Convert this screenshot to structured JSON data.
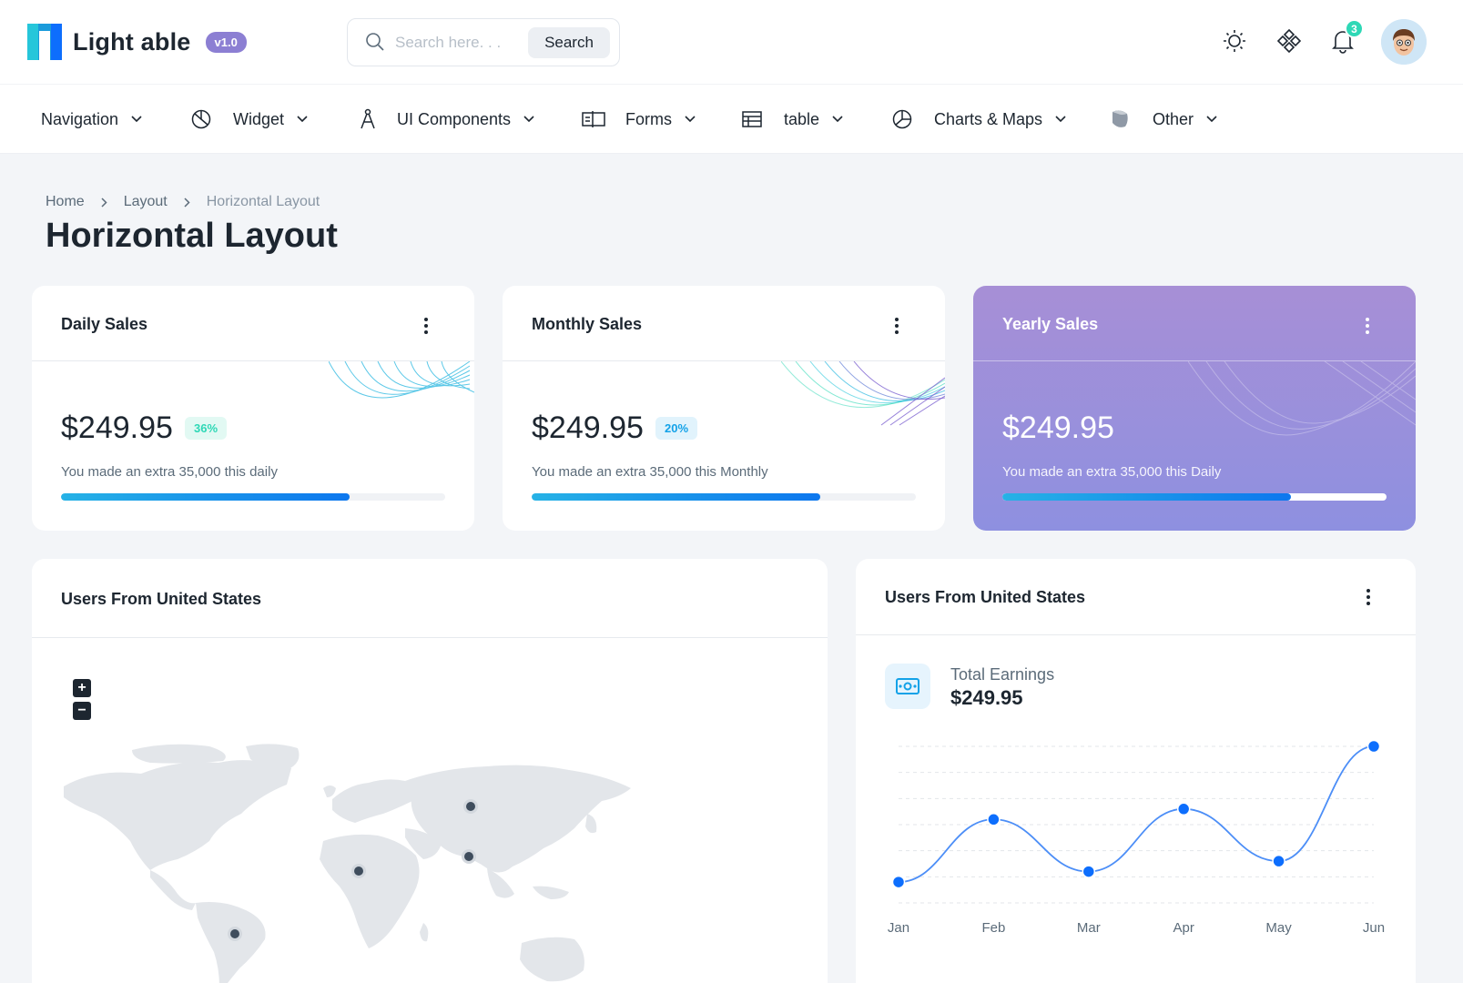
{
  "brand": {
    "name": "Light able",
    "version": "v1.0"
  },
  "search": {
    "placeholder": "Search here. . .",
    "button_label": "Search"
  },
  "header": {
    "notification_count": "3",
    "icons": [
      "sun-icon",
      "customize-icon",
      "bell-icon",
      "user-avatar"
    ]
  },
  "nav": [
    {
      "label": "Navigation",
      "icon": ""
    },
    {
      "label": "Widget",
      "icon": "pie-chart-icon"
    },
    {
      "label": "UI Components",
      "icon": "compass-icon"
    },
    {
      "label": "Forms",
      "icon": "form-icon"
    },
    {
      "label": "table",
      "icon": "table-icon"
    },
    {
      "label": "Charts & Maps",
      "icon": "chart-icon"
    },
    {
      "label": "Other",
      "icon": "shape-icon"
    }
  ],
  "breadcrumb": [
    "Home",
    "Layout",
    "Horizontal Layout"
  ],
  "page_title": "Horizontal Layout",
  "cards": [
    {
      "title": "Daily Sales",
      "amount": "$249.95",
      "percent": "36%",
      "note": "You made an extra 35,000 this daily",
      "progress": 0.75,
      "badge_color": "#2ed8b6"
    },
    {
      "title": "Monthly Sales",
      "amount": "$249.95",
      "percent": "20%",
      "note": "You made an extra 35,000 this Monthly",
      "progress": 0.75,
      "badge_color": "#13a2e8"
    },
    {
      "title": "Yearly Sales",
      "amount": "$249.95",
      "percent": "",
      "note": "You made an extra 35,000 this Daily",
      "progress": 0.75
    }
  ],
  "map_card": {
    "title": "Users From United States",
    "zoom_in": "+",
    "zoom_out": "−"
  },
  "earnings_card": {
    "title": "Users From United States",
    "label": "Total Earnings",
    "value": "$249.95"
  },
  "colors": {
    "primary": "#0d6efd",
    "accent_green": "#2ed8b6",
    "purple": "#a48fd6",
    "text": "#1d2630"
  },
  "chart_data": {
    "type": "line",
    "categories": [
      "Jan",
      "Feb",
      "Mar",
      "Apr",
      "May",
      "Jun"
    ],
    "series": [
      {
        "values": [
          10,
          40,
          15,
          45,
          20,
          75
        ]
      }
    ],
    "ylim": [
      0,
      75
    ],
    "grid": true,
    "smooth": true
  }
}
